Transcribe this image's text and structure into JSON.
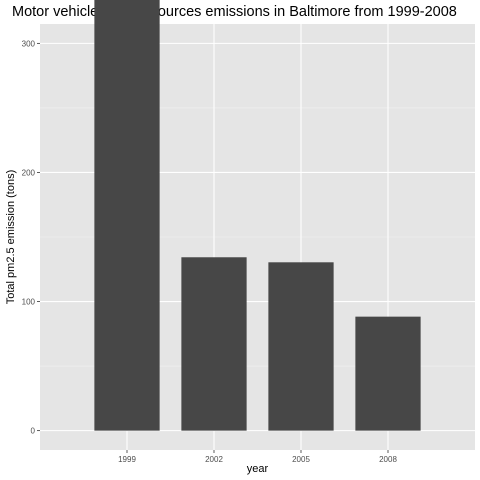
{
  "chart_data": {
    "type": "bar",
    "title": "Motor vehicle related sources emissions in Baltimore from 1999-2008",
    "xlabel": "year",
    "ylabel": "Total pm2.5 emission (tons)",
    "categories": [
      "1999",
      "2002",
      "2005",
      "2008"
    ],
    "values": [
      346.8,
      134.3,
      130.4,
      88.3
    ],
    "ylim": [
      -15,
      315
    ],
    "yticks": [
      0,
      100,
      200,
      300
    ],
    "grid": true,
    "legend": "none",
    "colors": {
      "panel": "#e5e5e5",
      "grid_major": "#ffffff",
      "grid_minor": "#f0f0f0",
      "bar": "#474747",
      "tick": "#4d4d4d"
    }
  }
}
